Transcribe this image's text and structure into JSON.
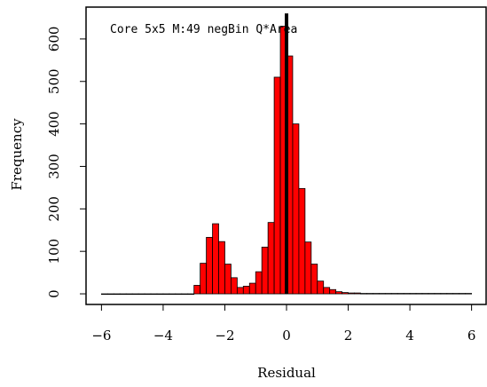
{
  "chart_data": {
    "type": "bar",
    "annotation": "Core 5x5 M:49 negBin Q*Area",
    "xlabel": "Residual",
    "ylabel": "Frequency",
    "xlim": [
      -6.5,
      6.5
    ],
    "ylim": [
      -25,
      675
    ],
    "xticks": [
      -6,
      -4,
      -2,
      0,
      2,
      4,
      6
    ],
    "yticks": [
      0,
      100,
      200,
      300,
      400,
      500,
      600
    ],
    "bin_width": 0.2,
    "bin_start": -6.0,
    "values": [
      0,
      0,
      0,
      0,
      0,
      0,
      0,
      0,
      0,
      0,
      0,
      0,
      0,
      0,
      0,
      20,
      72,
      133,
      165,
      123,
      70,
      38,
      15,
      18,
      25,
      52,
      110,
      168,
      510,
      630,
      560,
      400,
      248,
      122,
      70,
      30,
      15,
      10,
      5,
      3,
      2,
      2,
      1,
      1,
      1,
      1,
      1,
      1,
      1,
      1,
      1,
      1,
      1,
      1,
      1,
      1,
      1,
      1,
      1,
      1
    ],
    "vline_x": 0,
    "bar_color": "#ff0000"
  }
}
